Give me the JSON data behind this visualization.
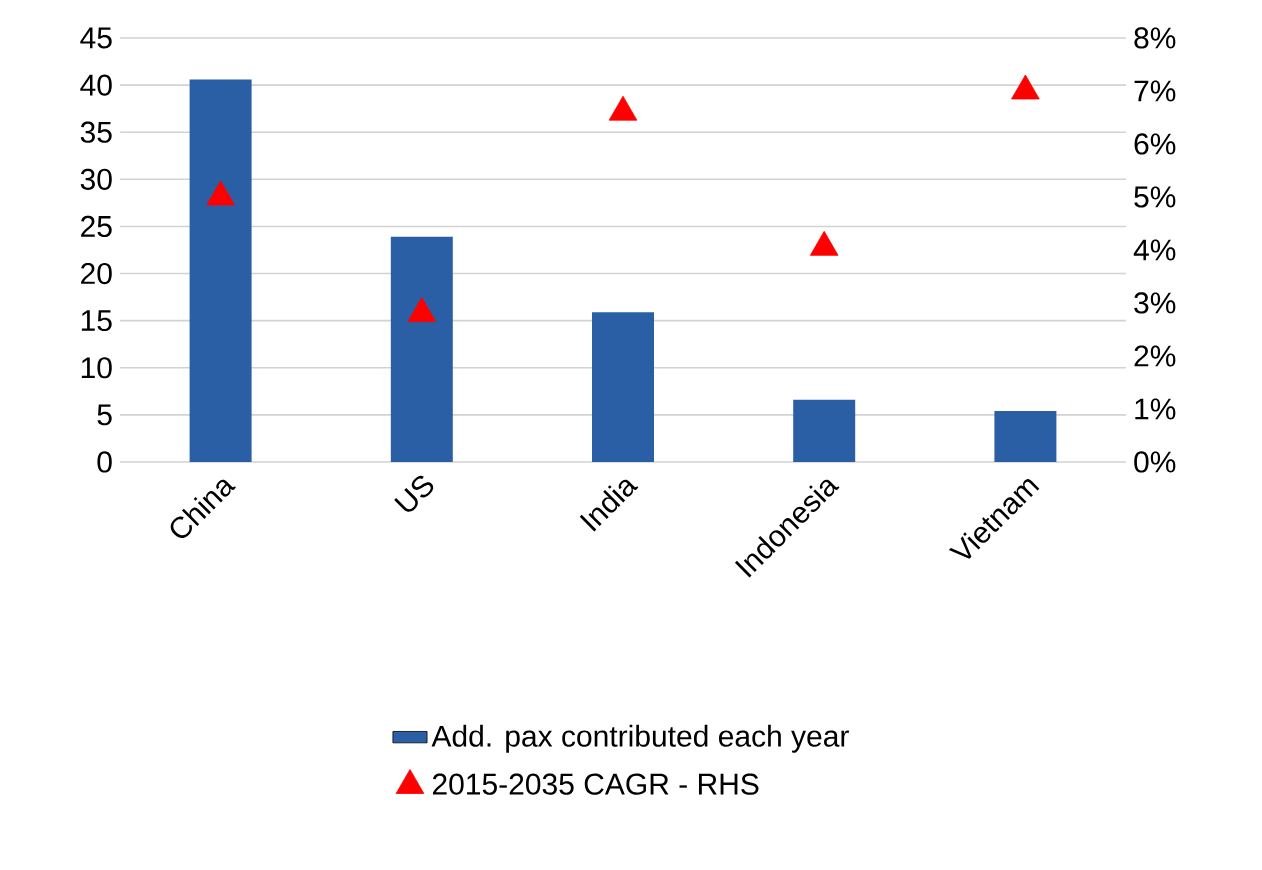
{
  "chart_data": {
    "type": "bar",
    "categories": [
      "China",
      "US",
      "India",
      "Indonesia",
      "Vietnam"
    ],
    "series": [
      {
        "name": "Add. pax contributed each year",
        "color": "#2a5fa5",
        "values": [
          40.6,
          23.9,
          15.9,
          6.6,
          5.4
        ]
      },
      {
        "name": "2015-2035 CAGR - RHS",
        "type": "scatter",
        "axis": "y2",
        "color": "#ff0000",
        "marker": "triangle",
        "values": [
          5.0,
          2.8,
          6.6,
          4.05,
          7.0
        ]
      }
    ],
    "ylim": [
      0,
      45
    ],
    "yticks": [
      0,
      5,
      10,
      15,
      20,
      25,
      30,
      35,
      40,
      45
    ],
    "y2lim": [
      0,
      8
    ],
    "y2ticks": [
      {
        "value": 0,
        "label": "0%"
      },
      {
        "value": 1,
        "label": "1%"
      },
      {
        "value": 2,
        "label": "2%"
      },
      {
        "value": 3,
        "label": "3%"
      },
      {
        "value": 4,
        "label": "4%"
      },
      {
        "value": 5,
        "label": "5%"
      },
      {
        "value": 6,
        "label": "6%"
      },
      {
        "value": 7,
        "label": "7%"
      },
      {
        "value": 8,
        "label": "8%"
      }
    ],
    "grid": "y",
    "legend": "bottom"
  }
}
